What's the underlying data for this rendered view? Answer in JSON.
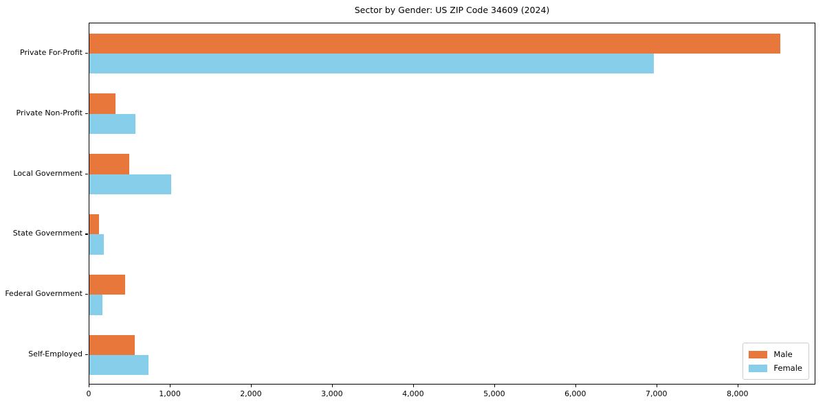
{
  "chart_data": {
    "type": "bar",
    "orientation": "horizontal",
    "title": "Sector by Gender: US ZIP Code 34609 (2024)",
    "categories": [
      "Private For-Profit",
      "Private Non-Profit",
      "Local Government",
      "State Government",
      "Federal Government",
      "Self-Employed"
    ],
    "series": [
      {
        "name": "Male",
        "color": "#e8773c",
        "values": [
          8520,
          320,
          490,
          120,
          440,
          560
        ]
      },
      {
        "name": "Female",
        "color": "#87ceeb",
        "values": [
          6960,
          570,
          1010,
          180,
          160,
          730
        ]
      }
    ],
    "xlabel": "",
    "ylabel": "",
    "xlim": [
      0,
      8960
    ],
    "x_ticks": [
      0,
      1000,
      2000,
      3000,
      4000,
      5000,
      6000,
      7000,
      8000
    ],
    "x_tick_labels": [
      "0",
      "1,000",
      "2,000",
      "3,000",
      "4,000",
      "5,000",
      "6,000",
      "7,000",
      "8,000"
    ],
    "grid": false,
    "legend": {
      "position": "lower right"
    },
    "colors": {
      "axis": "#000000",
      "text": "#000000",
      "legend_border": "#cccccc",
      "background": "#ffffff"
    }
  }
}
